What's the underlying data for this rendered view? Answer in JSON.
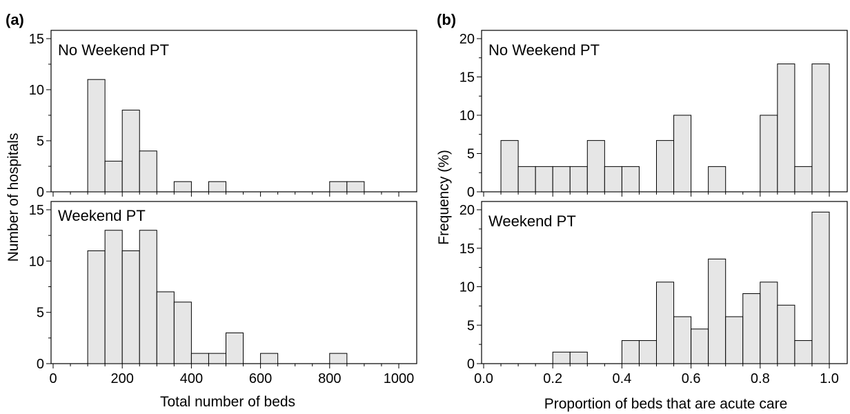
{
  "chart_data": [
    {
      "type": "bar",
      "panel_label": "(a)",
      "title": "No Weekend PT",
      "xlabel": "Total number of beds",
      "ylabel": "Number of hospitals",
      "xlim": [
        0,
        1000
      ],
      "ylim": [
        0,
        15
      ],
      "yticks": [
        0,
        5,
        10,
        15
      ],
      "bin_width": 50,
      "bins": [
        {
          "x": 100,
          "value": 11
        },
        {
          "x": 150,
          "value": 3
        },
        {
          "x": 200,
          "value": 8
        },
        {
          "x": 250,
          "value": 4
        },
        {
          "x": 350,
          "value": 1
        },
        {
          "x": 450,
          "value": 1
        },
        {
          "x": 800,
          "value": 1
        },
        {
          "x": 850,
          "value": 1
        }
      ]
    },
    {
      "type": "bar",
      "panel_label": "",
      "title": "Weekend PT",
      "xlabel": "Total number of beds",
      "ylabel": "Number of hospitals",
      "xlim": [
        0,
        1000
      ],
      "ylim": [
        0,
        15
      ],
      "xticks": [
        0,
        200,
        400,
        600,
        800,
        1000
      ],
      "yticks": [
        0,
        5,
        10,
        15
      ],
      "bin_width": 50,
      "bins": [
        {
          "x": 100,
          "value": 11
        },
        {
          "x": 150,
          "value": 13
        },
        {
          "x": 200,
          "value": 11
        },
        {
          "x": 250,
          "value": 13
        },
        {
          "x": 300,
          "value": 7
        },
        {
          "x": 350,
          "value": 6
        },
        {
          "x": 400,
          "value": 1
        },
        {
          "x": 450,
          "value": 1
        },
        {
          "x": 500,
          "value": 3
        },
        {
          "x": 600,
          "value": 1
        },
        {
          "x": 800,
          "value": 1
        }
      ]
    },
    {
      "type": "bar",
      "panel_label": "(b)",
      "title": "No Weekend PT",
      "xlabel": "Proportion of beds that are acute care",
      "ylabel": "Frequency (%)",
      "xlim": [
        0,
        1
      ],
      "ylim": [
        0,
        20
      ],
      "yticks": [
        0,
        5,
        10,
        15,
        20
      ],
      "bin_width": 0.05,
      "bins": [
        {
          "x": 0.05,
          "value": 6.7
        },
        {
          "x": 0.1,
          "value": 3.3
        },
        {
          "x": 0.15,
          "value": 3.3
        },
        {
          "x": 0.2,
          "value": 3.3
        },
        {
          "x": 0.25,
          "value": 3.3
        },
        {
          "x": 0.3,
          "value": 6.7
        },
        {
          "x": 0.35,
          "value": 3.3
        },
        {
          "x": 0.4,
          "value": 3.3
        },
        {
          "x": 0.5,
          "value": 6.7
        },
        {
          "x": 0.55,
          "value": 10
        },
        {
          "x": 0.65,
          "value": 3.3
        },
        {
          "x": 0.8,
          "value": 10
        },
        {
          "x": 0.85,
          "value": 16.7
        },
        {
          "x": 0.9,
          "value": 3.3
        },
        {
          "x": 0.95,
          "value": 16.7
        }
      ]
    },
    {
      "type": "bar",
      "panel_label": "",
      "title": "Weekend PT",
      "xlabel": "Proportion of beds that are acute care",
      "ylabel": "Frequency (%)",
      "xlim": [
        0,
        1
      ],
      "ylim": [
        0,
        20
      ],
      "xticks": [
        "0.0",
        "0.2",
        "0.4",
        "0.6",
        "0.8",
        "1.0"
      ],
      "yticks": [
        0,
        5,
        10,
        15,
        20
      ],
      "bin_width": 0.05,
      "bins": [
        {
          "x": 0.2,
          "value": 1.5
        },
        {
          "x": 0.25,
          "value": 1.5
        },
        {
          "x": 0.4,
          "value": 3
        },
        {
          "x": 0.45,
          "value": 3
        },
        {
          "x": 0.5,
          "value": 10.6
        },
        {
          "x": 0.55,
          "value": 6.1
        },
        {
          "x": 0.6,
          "value": 4.5
        },
        {
          "x": 0.65,
          "value": 13.6
        },
        {
          "x": 0.7,
          "value": 6.1
        },
        {
          "x": 0.75,
          "value": 9.1
        },
        {
          "x": 0.8,
          "value": 10.6
        },
        {
          "x": 0.85,
          "value": 7.6
        },
        {
          "x": 0.9,
          "value": 3
        },
        {
          "x": 0.95,
          "value": 19.7
        }
      ]
    }
  ]
}
